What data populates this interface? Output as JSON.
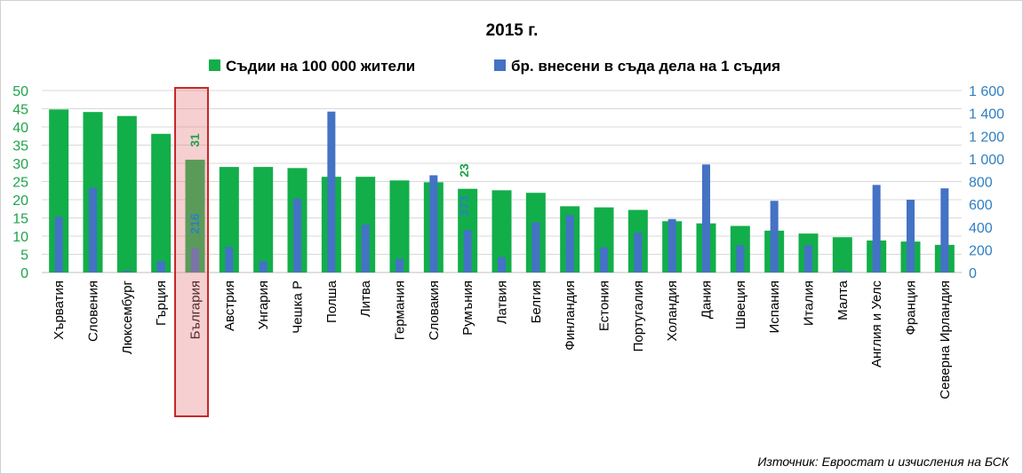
{
  "chart_data": {
    "type": "bar",
    "title": "2015 г.",
    "categories": [
      "Хърватия",
      "Словения",
      "Люксембург",
      "Гърция",
      "България",
      "Австрия",
      "Унгария",
      "Чешка Р",
      "Полша",
      "Литва",
      "Германия",
      "Словакия",
      "Румъния",
      "Латвия",
      "Белгия",
      "Финландия",
      "Естония",
      "Португалия",
      "Холандия",
      "Дания",
      "Швеция",
      "Испания",
      "Италия",
      "Малта",
      "Англия и Уелс",
      "Франция",
      "Северна Ирландия"
    ],
    "series": [
      {
        "name": "Съдии на 100 000 жители",
        "axis": "left",
        "color": "#12ae4a",
        "values": [
          44.8,
          44.1,
          43.0,
          38.1,
          31,
          29.0,
          29.0,
          28.7,
          26.3,
          26.3,
          25.3,
          24.8,
          23,
          22.6,
          21.9,
          18.2,
          17.9,
          17.2,
          14.1,
          13.5,
          12.8,
          11.5,
          10.7,
          9.7,
          8.8,
          8.5,
          7.6
        ]
      },
      {
        "name": "бр. внесени в съда дела на 1 съдия",
        "axis": "right",
        "color": "#4472c4",
        "values": [
          490,
          745,
          15,
          100,
          216,
          225,
          100,
          650,
          1415,
          420,
          120,
          855,
          373,
          135,
          440,
          505,
          220,
          350,
          470,
          950,
          240,
          630,
          240,
          15,
          770,
          640,
          740
        ]
      }
    ],
    "data_labels": {
      "green_value": "31",
      "blue_value": "216",
      "green_value_2": "23",
      "blue_value_2": "373"
    },
    "left_axis": {
      "min": 0,
      "max": 50,
      "ticks": [
        "0",
        "5",
        "10",
        "15",
        "20",
        "25",
        "30",
        "35",
        "40",
        "45",
        "50"
      ],
      "color": "#1ea34a"
    },
    "right_axis": {
      "min": 0,
      "max": 1600,
      "ticks": [
        "0",
        "200",
        "400",
        "600",
        "800",
        "1 000",
        "1 200",
        "1 400",
        "1 600"
      ],
      "color": "#2f7fc1"
    },
    "highlight_category": "България",
    "grid": true,
    "legend_position": "top",
    "source": "Източник: Евростат и изчисления на БСК"
  }
}
